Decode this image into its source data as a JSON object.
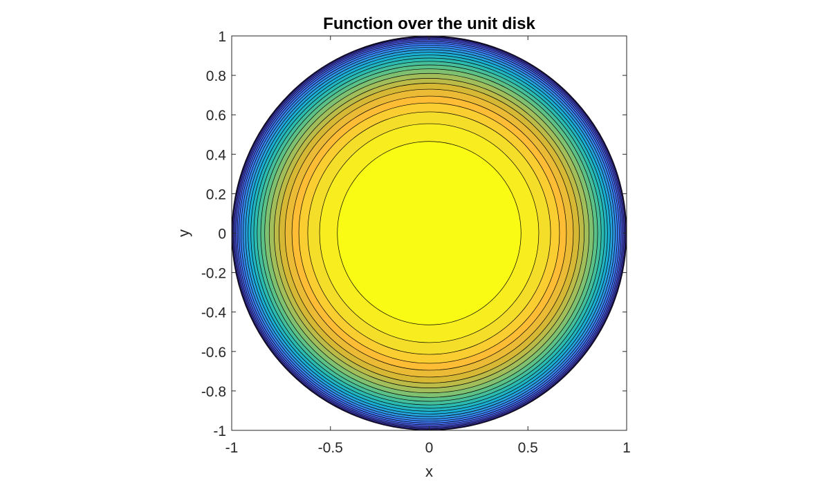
{
  "chart_data": {
    "type": "contour",
    "title": "Function over the unit disk",
    "xlabel": "x",
    "ylabel": "y",
    "xlim": [
      -1,
      1
    ],
    "ylim": [
      -1,
      1
    ],
    "aspect": "equal",
    "xticks": [
      -1,
      -0.5,
      0,
      0.5,
      1
    ],
    "xtick_labels": [
      "-1",
      "-0.5",
      "0",
      "0.5",
      "1"
    ],
    "yticks": [
      1,
      0.8,
      0.6,
      0.4,
      0.2,
      0,
      -0.2,
      -0.4,
      -0.6,
      -0.8,
      -1
    ],
    "ytick_labels": [
      "1",
      "0.8",
      "0.6",
      "0.4",
      "0.2",
      "0",
      "-0.2",
      "-0.4",
      "-0.6",
      "-0.8",
      "-1"
    ],
    "domain": "unit disk",
    "contour_radii": [
      0.465,
      0.555,
      0.615,
      0.66,
      0.695,
      0.73,
      0.76,
      0.785,
      0.81,
      0.833,
      0.853,
      0.871,
      0.888,
      0.903,
      0.917,
      0.93,
      0.942,
      0.953,
      0.963,
      0.972,
      0.98,
      0.987,
      0.993,
      0.997
    ],
    "colormap": "parula",
    "colormap_stops": [
      "#3e26a8",
      "#4743d0",
      "#4a5ee5",
      "#3e7bf6",
      "#2d97e6",
      "#1aaed3",
      "#2bbaaf",
      "#5cc186",
      "#a1be5b",
      "#d7b834",
      "#ffbd36",
      "#f4de2a",
      "#f9fb14"
    ],
    "contour_line_color": "#000000",
    "grid": false
  }
}
